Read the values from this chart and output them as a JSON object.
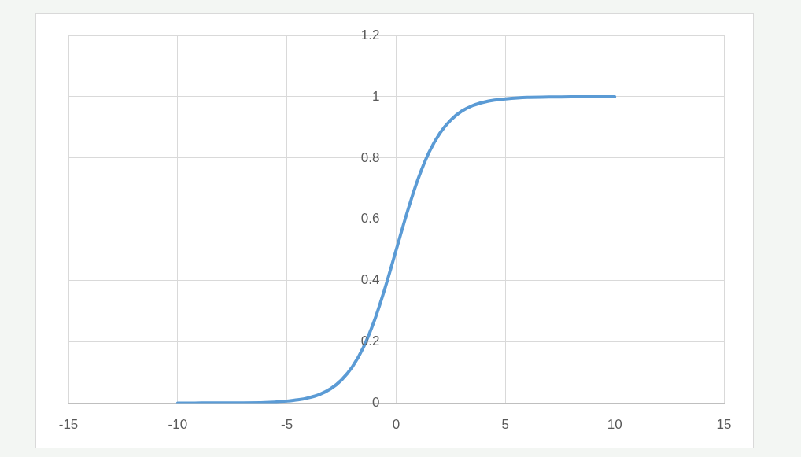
{
  "chart_data": {
    "type": "line",
    "x": [
      -10,
      -8,
      -7,
      -6,
      -5,
      -4.5,
      -4,
      -3.5,
      -3,
      -2.5,
      -2,
      -1.5,
      -1,
      -0.5,
      0,
      0.5,
      1,
      1.5,
      2,
      2.5,
      3,
      3.5,
      4,
      4.5,
      5,
      6,
      7,
      8,
      10
    ],
    "values": [
      0,
      0.001,
      0.001,
      0.002,
      0.007,
      0.011,
      0.018,
      0.029,
      0.047,
      0.076,
      0.119,
      0.182,
      0.269,
      0.378,
      0.5,
      0.622,
      0.731,
      0.818,
      0.881,
      0.924,
      0.953,
      0.971,
      0.982,
      0.989,
      0.993,
      0.998,
      0.999,
      1,
      1
    ],
    "color": "#5b9bd5",
    "xlim": [
      -15,
      15
    ],
    "xticks": [
      -15,
      -10,
      -5,
      0,
      5,
      10,
      15
    ],
    "ylim": [
      0,
      1.2
    ],
    "yticks": [
      0,
      0.2,
      0.4,
      0.6,
      0.8,
      1,
      1.2
    ],
    "grid": true
  }
}
